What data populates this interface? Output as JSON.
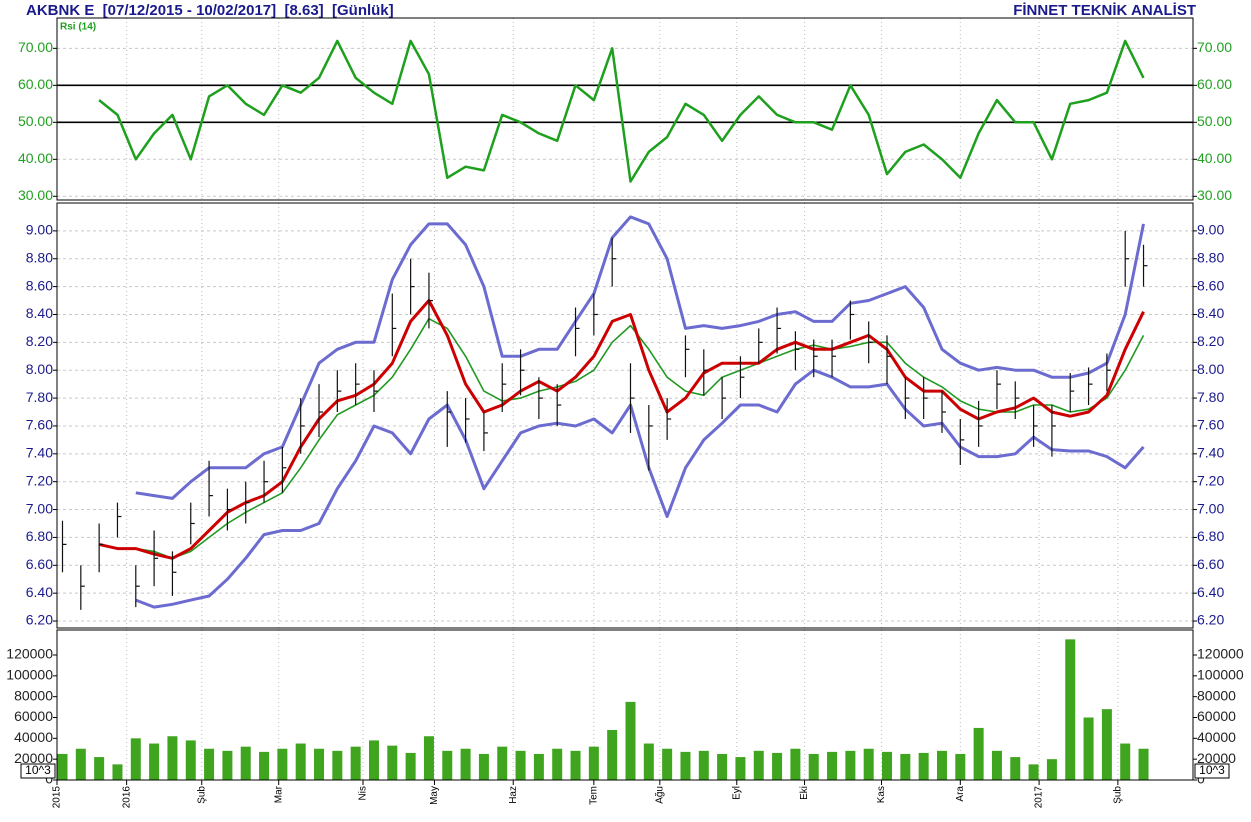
{
  "header": {
    "title": "AKBNK E  [07/12/2015 - 10/02/2017]  [8.63]  [Günlük]",
    "brand": "FİNNET TEKNİK ANALİST"
  },
  "x_axis": {
    "x": [
      0,
      1,
      2,
      3,
      4,
      5,
      6,
      7,
      8,
      9,
      10,
      11,
      12,
      13,
      14,
      15,
      16,
      17,
      18,
      19,
      20,
      21,
      22,
      23,
      24,
      25,
      26,
      27,
      28,
      29,
      30,
      31,
      32,
      33,
      34,
      35,
      36,
      37,
      38,
      39,
      40,
      41,
      42,
      43,
      44,
      45,
      46,
      47,
      48,
      49,
      50,
      51,
      52,
      53,
      54,
      55,
      56,
      57,
      58,
      59
    ],
    "xlim": [
      -0.3,
      61.7
    ],
    "xticks": [
      {
        "value": -0.3,
        "label": "2015"
      },
      {
        "value": 3.5,
        "label": "2016"
      },
      {
        "value": 7.6,
        "label": "Şub"
      },
      {
        "value": 11.8,
        "label": "Mar"
      },
      {
        "value": 16.4,
        "label": "Nis"
      },
      {
        "value": 20.3,
        "label": "May"
      },
      {
        "value": 24.6,
        "label": "Haz"
      },
      {
        "value": 29.0,
        "label": "Tem"
      },
      {
        "value": 32.6,
        "label": "Ağu"
      },
      {
        "value": 36.8,
        "label": "Eyl"
      },
      {
        "value": 40.5,
        "label": "Eki"
      },
      {
        "value": 44.7,
        "label": "Kas"
      },
      {
        "value": 49.0,
        "label": "Ara"
      },
      {
        "value": 53.3,
        "label": "2017"
      },
      {
        "value": 57.6,
        "label": "Şub"
      }
    ]
  },
  "chart_data": [
    {
      "type": "line",
      "ylim": [
        29,
        78.2
      ],
      "yticks": [
        {
          "value": 30,
          "label": "30.00"
        },
        {
          "value": 40,
          "label": "40.00"
        },
        {
          "value": 50,
          "label": "50.00"
        },
        {
          "value": 60,
          "label": "60.00"
        },
        {
          "value": 70,
          "label": "70.00"
        }
      ],
      "reference_lines": [
        60,
        50
      ],
      "grid": true,
      "tick_color": "#22a022",
      "series": [
        {
          "name": "Rsi (14)",
          "color": "#1ea01e",
          "values": [
            null,
            null,
            56,
            52,
            40,
            47,
            52,
            40,
            57,
            60,
            55,
            52,
            60,
            58,
            62,
            72,
            62,
            58,
            55,
            72,
            63,
            35,
            38,
            37,
            52,
            50,
            47,
            45,
            60,
            56,
            70,
            34,
            42,
            46,
            55,
            52,
            45,
            52,
            57,
            52,
            50,
            50,
            48,
            60,
            52,
            36,
            42,
            44,
            40,
            35,
            47,
            56,
            50,
            50,
            40,
            55,
            56,
            58,
            72,
            62
          ]
        }
      ]
    },
    {
      "type": "ohlc",
      "ylim": [
        6.15,
        9.2
      ],
      "yticks": [
        {
          "value": 6.2,
          "label": "6.20"
        },
        {
          "value": 6.4,
          "label": "6.40"
        },
        {
          "value": 6.6,
          "label": "6.60"
        },
        {
          "value": 6.8,
          "label": "6.80"
        },
        {
          "value": 7.0,
          "label": "7.00"
        },
        {
          "value": 7.2,
          "label": "7.20"
        },
        {
          "value": 7.4,
          "label": "7.40"
        },
        {
          "value": 7.6,
          "label": "7.60"
        },
        {
          "value": 7.8,
          "label": "7.80"
        },
        {
          "value": 8.0,
          "label": "8.00"
        },
        {
          "value": 8.2,
          "label": "8.20"
        },
        {
          "value": 8.4,
          "label": "8.40"
        },
        {
          "value": 8.6,
          "label": "8.60"
        },
        {
          "value": 8.8,
          "label": "8.80"
        },
        {
          "value": 9.0,
          "label": "9.00"
        }
      ],
      "grid": true,
      "tick_color": "#1a1a8c",
      "bar_color": "#111111",
      "high": [
        6.92,
        6.6,
        6.9,
        7.05,
        6.6,
        6.85,
        6.7,
        7.05,
        7.35,
        7.15,
        7.2,
        7.35,
        7.45,
        7.8,
        7.9,
        8.0,
        8.05,
        8.0,
        8.55,
        8.8,
        8.7,
        7.85,
        7.8,
        7.7,
        8.05,
        8.15,
        7.95,
        7.9,
        8.45,
        8.55,
        8.95,
        8.05,
        7.75,
        7.8,
        8.25,
        8.15,
        7.95,
        8.1,
        8.3,
        8.45,
        8.28,
        8.22,
        8.22,
        8.5,
        8.35,
        8.25,
        7.95,
        7.95,
        7.85,
        7.65,
        7.78,
        8.0,
        7.92,
        7.75,
        7.75,
        7.98,
        8.02,
        8.12,
        9.0,
        8.9
      ],
      "low": [
        6.55,
        6.28,
        6.55,
        6.8,
        6.3,
        6.45,
        6.38,
        6.75,
        6.95,
        6.85,
        6.9,
        7.05,
        7.12,
        7.4,
        7.52,
        7.7,
        7.75,
        7.7,
        8.1,
        8.4,
        8.3,
        7.45,
        7.48,
        7.42,
        7.7,
        7.82,
        7.65,
        7.6,
        8.1,
        8.25,
        8.6,
        7.55,
        7.28,
        7.5,
        7.95,
        7.82,
        7.65,
        7.8,
        8.05,
        8.12,
        8.0,
        7.95,
        7.95,
        8.22,
        8.05,
        7.9,
        7.65,
        7.65,
        7.55,
        7.32,
        7.45,
        7.72,
        7.65,
        7.45,
        7.38,
        7.7,
        7.75,
        7.85,
        8.6,
        8.6
      ],
      "close": [
        6.75,
        6.45,
        6.75,
        6.95,
        6.45,
        6.65,
        6.55,
        6.9,
        7.1,
        7.0,
        7.05,
        7.2,
        7.3,
        7.6,
        7.7,
        7.85,
        7.9,
        7.85,
        8.3,
        8.6,
        8.5,
        7.7,
        7.65,
        7.55,
        7.9,
        8.0,
        7.8,
        7.75,
        8.3,
        8.4,
        8.8,
        7.8,
        7.6,
        7.65,
        8.15,
        8.0,
        7.8,
        7.95,
        8.2,
        8.3,
        8.15,
        8.1,
        8.1,
        8.4,
        8.2,
        8.1,
        7.8,
        7.8,
        7.7,
        7.5,
        7.6,
        7.9,
        7.8,
        7.6,
        7.6,
        7.85,
        7.9,
        8.0,
        8.8,
        8.75
      ],
      "lines": [
        {
          "color": "#6b6bd0",
          "width": 3,
          "values": [
            null,
            null,
            null,
            null,
            7.12,
            7.1,
            7.08,
            7.2,
            7.3,
            7.3,
            7.3,
            7.4,
            7.45,
            7.75,
            8.05,
            8.15,
            8.2,
            8.2,
            8.65,
            8.9,
            9.05,
            9.05,
            8.9,
            8.6,
            8.1,
            8.1,
            8.15,
            8.15,
            8.35,
            8.55,
            8.95,
            9.1,
            9.05,
            8.8,
            8.3,
            8.32,
            8.3,
            8.32,
            8.35,
            8.4,
            8.42,
            8.35,
            8.35,
            8.48,
            8.5,
            8.55,
            8.6,
            8.45,
            8.15,
            8.05,
            8.0,
            8.02,
            8.0,
            8.0,
            7.95,
            7.95,
            7.98,
            8.05,
            8.4,
            9.05
          ]
        },
        {
          "color": "#6b6bd0",
          "width": 3,
          "values": [
            null,
            null,
            null,
            null,
            6.35,
            6.3,
            6.32,
            6.35,
            6.38,
            6.5,
            6.65,
            6.82,
            6.85,
            6.85,
            6.9,
            7.15,
            7.35,
            7.6,
            7.55,
            7.4,
            7.65,
            7.75,
            7.5,
            7.15,
            7.35,
            7.55,
            7.6,
            7.62,
            7.6,
            7.65,
            7.55,
            7.75,
            7.3,
            6.95,
            7.3,
            7.5,
            7.62,
            7.75,
            7.75,
            7.7,
            7.9,
            8.0,
            7.95,
            7.88,
            7.88,
            7.9,
            7.72,
            7.6,
            7.62,
            7.45,
            7.38,
            7.38,
            7.4,
            7.52,
            7.43,
            7.42,
            7.42,
            7.38,
            7.3,
            7.45
          ]
        },
        {
          "color": "#229922",
          "width": 1.6,
          "values": [
            null,
            null,
            null,
            null,
            6.72,
            6.7,
            6.65,
            6.7,
            6.8,
            6.9,
            6.98,
            7.05,
            7.12,
            7.3,
            7.5,
            7.68,
            7.75,
            7.82,
            7.95,
            8.15,
            8.37,
            8.3,
            8.1,
            7.85,
            7.78,
            7.8,
            7.85,
            7.88,
            7.92,
            8.0,
            8.2,
            8.32,
            8.15,
            7.95,
            7.85,
            7.82,
            7.95,
            8.0,
            8.05,
            8.1,
            8.15,
            8.18,
            8.15,
            8.17,
            8.2,
            8.2,
            8.05,
            7.95,
            7.88,
            7.78,
            7.72,
            7.7,
            7.7,
            7.75,
            7.75,
            7.7,
            7.72,
            7.8,
            8.0,
            8.25
          ]
        },
        {
          "color": "#cc0000",
          "width": 3,
          "values": [
            null,
            null,
            6.75,
            6.72,
            6.72,
            6.68,
            6.65,
            6.72,
            6.85,
            6.98,
            7.05,
            7.1,
            7.2,
            7.45,
            7.65,
            7.78,
            7.82,
            7.9,
            8.05,
            8.35,
            8.5,
            8.25,
            7.9,
            7.7,
            7.75,
            7.85,
            7.92,
            7.85,
            7.95,
            8.1,
            8.35,
            8.4,
            8.0,
            7.7,
            7.8,
            7.98,
            8.05,
            8.05,
            8.05,
            8.15,
            8.2,
            8.15,
            8.15,
            8.2,
            8.25,
            8.15,
            7.95,
            7.85,
            7.85,
            7.72,
            7.65,
            7.7,
            7.73,
            7.8,
            7.7,
            7.67,
            7.7,
            7.82,
            8.15,
            8.42
          ]
        }
      ]
    },
    {
      "type": "bar",
      "ylim": [
        0,
        144000
      ],
      "yticks": [
        0,
        20000,
        40000,
        60000,
        80000,
        100000,
        120000
      ],
      "unit_label": "10^3",
      "color": "#3fa41e",
      "tick_color": "#222222",
      "values": [
        25000,
        30000,
        22000,
        15000,
        40000,
        35000,
        42000,
        38000,
        30000,
        28000,
        32000,
        27000,
        30000,
        35000,
        30000,
        28000,
        32000,
        38000,
        33000,
        26000,
        42000,
        28000,
        30000,
        25000,
        32000,
        28000,
        25000,
        30000,
        28000,
        32000,
        48000,
        75000,
        35000,
        30000,
        27000,
        28000,
        25000,
        22000,
        28000,
        26000,
        30000,
        25000,
        27000,
        28000,
        30000,
        27000,
        25000,
        26000,
        28000,
        25000,
        50000,
        28000,
        22000,
        15000,
        20000,
        135000,
        60000,
        68000,
        35000,
        30000
      ]
    }
  ]
}
